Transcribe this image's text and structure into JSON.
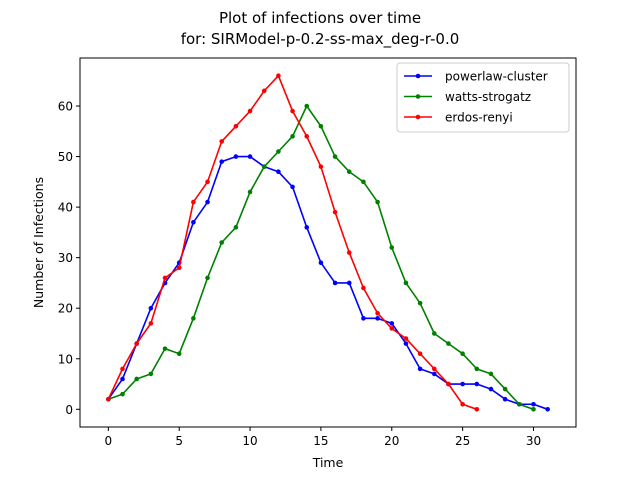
{
  "chart_data": {
    "type": "line",
    "title": "Plot of infections over time",
    "subtitle": "for: SIRModel-p-0.2-ss-max_deg-r-0.0",
    "xlabel": "Time",
    "ylabel": "Number of Infections",
    "xlim": [
      -2.0,
      33.0
    ],
    "ylim": [
      -3.5,
      69.5
    ],
    "xticks": [
      0,
      5,
      10,
      15,
      20,
      25,
      30
    ],
    "xtick_labels": [
      "0",
      "5",
      "10",
      "15",
      "20",
      "25",
      "30"
    ],
    "yticks": [
      0,
      10,
      20,
      30,
      40,
      50,
      60
    ],
    "ytick_labels": [
      "0",
      "10",
      "20",
      "30",
      "40",
      "50",
      "60"
    ],
    "grid": false,
    "legend_position": "top-right",
    "series": [
      {
        "name": "powerlaw-cluster",
        "color": "#0000ff",
        "x": [
          0,
          1,
          2,
          3,
          4,
          5,
          6,
          7,
          8,
          9,
          10,
          11,
          12,
          13,
          14,
          15,
          16,
          17,
          18,
          19,
          20,
          21,
          22,
          23,
          24,
          25,
          26,
          27,
          28,
          29,
          30,
          31
        ],
        "values": [
          2,
          6,
          13,
          20,
          25,
          29,
          37,
          41,
          49,
          50,
          50,
          48,
          47,
          44,
          36,
          29,
          25,
          25,
          18,
          18,
          17,
          13,
          8,
          7,
          5,
          5,
          5,
          4,
          2,
          1,
          1,
          0
        ]
      },
      {
        "name": "watts-strogatz",
        "color": "#008000",
        "x": [
          0,
          1,
          2,
          3,
          4,
          5,
          6,
          7,
          8,
          9,
          10,
          11,
          12,
          13,
          14,
          15,
          16,
          17,
          18,
          19,
          20,
          21,
          22,
          23,
          24,
          25,
          26,
          27,
          28,
          29,
          30
        ],
        "values": [
          2,
          3,
          6,
          7,
          12,
          11,
          18,
          26,
          33,
          36,
          43,
          48,
          51,
          54,
          60,
          56,
          50,
          47,
          45,
          41,
          32,
          25,
          21,
          15,
          13,
          11,
          8,
          7,
          4,
          1,
          0
        ]
      },
      {
        "name": "erdos-renyi",
        "color": "#ff0000",
        "x": [
          0,
          1,
          2,
          3,
          4,
          5,
          6,
          7,
          8,
          9,
          10,
          11,
          12,
          13,
          14,
          15,
          16,
          17,
          18,
          19,
          20,
          21,
          22,
          23,
          24,
          25,
          26
        ],
        "values": [
          2,
          8,
          13,
          17,
          26,
          28,
          41,
          45,
          53,
          56,
          59,
          63,
          66,
          59,
          54,
          48,
          39,
          31,
          24,
          19,
          16,
          14,
          11,
          8,
          5,
          1,
          0
        ]
      }
    ]
  }
}
